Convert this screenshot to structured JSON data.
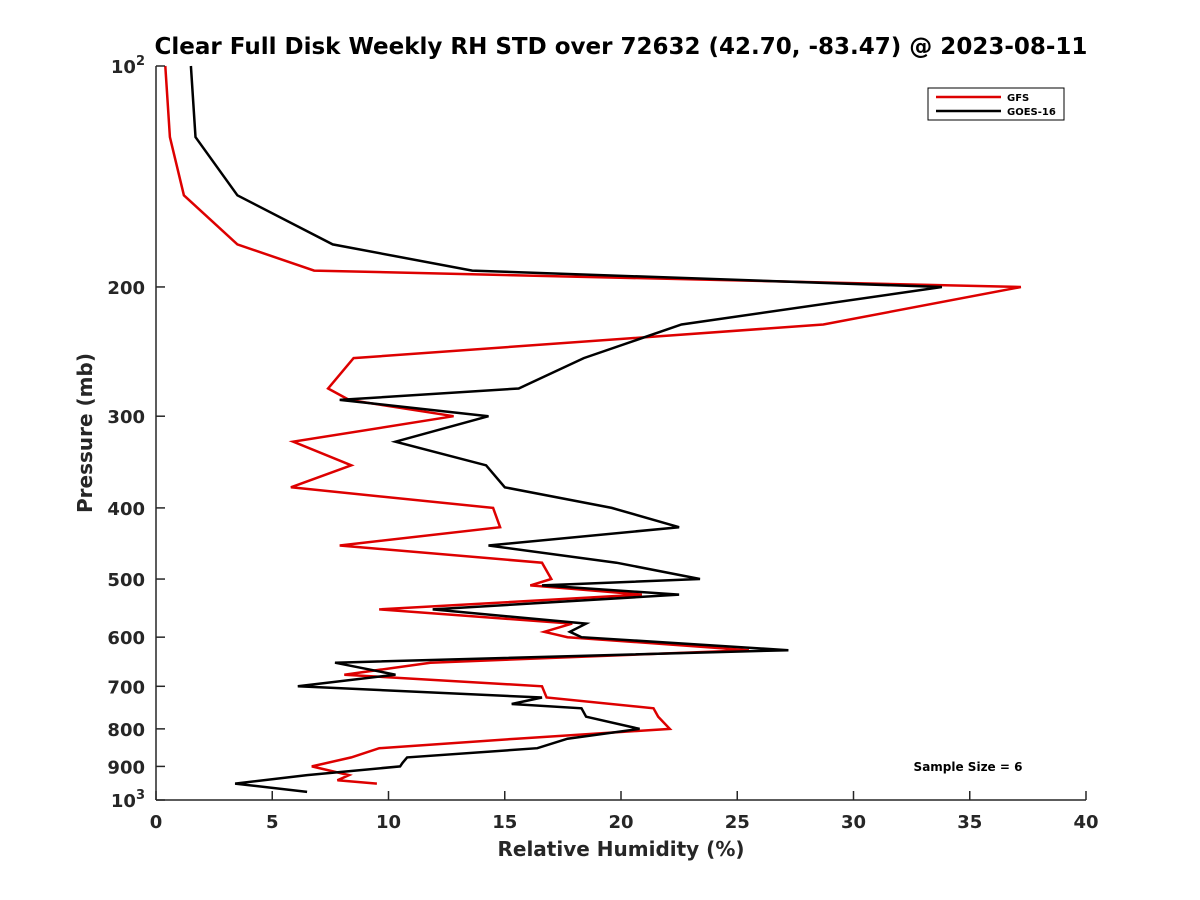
{
  "chart_data": {
    "type": "line",
    "title": "Clear Full Disk Weekly RH STD over 72632 (42.70, -83.47) @ 2023-08-11",
    "xlabel": "Relative Humidity (%)",
    "ylabel": "Pressure (mb)",
    "xlim": [
      0,
      40
    ],
    "ylim": [
      100,
      1000
    ],
    "y_scale": "log",
    "y_reversed": true,
    "grid": false,
    "legend_position": "top-right",
    "x_ticks": [
      0,
      5,
      10,
      15,
      20,
      25,
      30,
      35,
      40
    ],
    "y_ticks": [
      {
        "value": 100,
        "label": "10",
        "exp": "2"
      },
      {
        "value": 200,
        "label": "200"
      },
      {
        "value": 300,
        "label": "300"
      },
      {
        "value": 400,
        "label": "400"
      },
      {
        "value": 500,
        "label": "500"
      },
      {
        "value": 600,
        "label": "600"
      },
      {
        "value": 700,
        "label": "700"
      },
      {
        "value": 800,
        "label": "800"
      },
      {
        "value": 900,
        "label": "900"
      },
      {
        "value": 1000,
        "label": "10",
        "exp": "3"
      }
    ],
    "annotation": "Sample Size = 6",
    "series": [
      {
        "name": "GFS",
        "color": "#dd0000",
        "points": [
          [
            0.4,
            100
          ],
          [
            0.6,
            125
          ],
          [
            1.2,
            150
          ],
          [
            3.5,
            175
          ],
          [
            6.8,
            190
          ],
          [
            37.2,
            200
          ],
          [
            28.7,
            225
          ],
          [
            8.5,
            250
          ],
          [
            7.4,
            275
          ],
          [
            8.3,
            285
          ],
          [
            12.8,
            300
          ],
          [
            5.9,
            325
          ],
          [
            8.4,
            350
          ],
          [
            5.8,
            375
          ],
          [
            14.5,
            400
          ],
          [
            14.8,
            425
          ],
          [
            7.9,
            450
          ],
          [
            16.6,
            475
          ],
          [
            17.0,
            500
          ],
          [
            16.1,
            510
          ],
          [
            20.9,
            525
          ],
          [
            9.6,
            550
          ],
          [
            17.9,
            575
          ],
          [
            16.7,
            590
          ],
          [
            17.7,
            600
          ],
          [
            25.5,
            625
          ],
          [
            11.8,
            650
          ],
          [
            8.1,
            675
          ],
          [
            16.6,
            700
          ],
          [
            16.8,
            725
          ],
          [
            21.4,
            750
          ],
          [
            21.6,
            770
          ],
          [
            22.1,
            800
          ],
          [
            15.5,
            825
          ],
          [
            9.6,
            850
          ],
          [
            8.4,
            875
          ],
          [
            6.7,
            900
          ],
          [
            8.3,
            925
          ],
          [
            7.8,
            940
          ],
          [
            9.5,
            950
          ]
        ]
      },
      {
        "name": "GOES-16",
        "color": "#000000",
        "points": [
          [
            1.5,
            100
          ],
          [
            1.7,
            125
          ],
          [
            3.5,
            150
          ],
          [
            7.6,
            175
          ],
          [
            13.6,
            190
          ],
          [
            33.8,
            200
          ],
          [
            22.6,
            225
          ],
          [
            18.4,
            250
          ],
          [
            15.6,
            275
          ],
          [
            7.9,
            285
          ],
          [
            14.3,
            300
          ],
          [
            10.3,
            325
          ],
          [
            14.2,
            350
          ],
          [
            15.0,
            375
          ],
          [
            19.6,
            400
          ],
          [
            22.5,
            425
          ],
          [
            14.3,
            450
          ],
          [
            19.8,
            475
          ],
          [
            23.4,
            500
          ],
          [
            16.6,
            510
          ],
          [
            22.5,
            525
          ],
          [
            11.9,
            550
          ],
          [
            18.5,
            575
          ],
          [
            17.8,
            590
          ],
          [
            18.3,
            600
          ],
          [
            27.2,
            625
          ],
          [
            7.7,
            650
          ],
          [
            10.3,
            675
          ],
          [
            6.1,
            700
          ],
          [
            16.6,
            725
          ],
          [
            15.3,
            740
          ],
          [
            18.3,
            750
          ],
          [
            18.5,
            770
          ],
          [
            20.8,
            800
          ],
          [
            17.7,
            825
          ],
          [
            16.4,
            850
          ],
          [
            10.8,
            875
          ],
          [
            10.6,
            890
          ],
          [
            10.5,
            900
          ],
          [
            6.5,
            925
          ],
          [
            3.4,
            950
          ],
          [
            6.5,
            975
          ]
        ]
      }
    ]
  }
}
